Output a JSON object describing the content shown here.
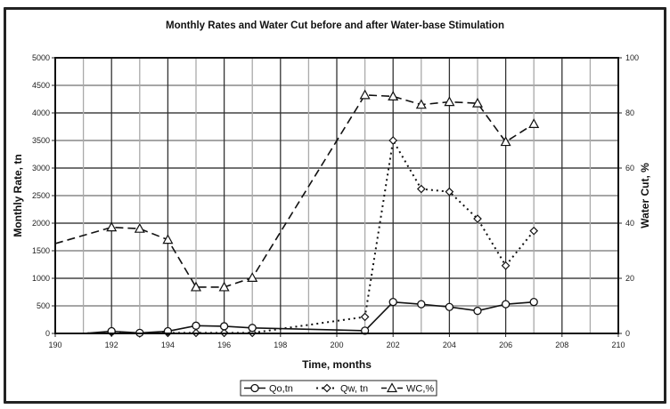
{
  "chart_data": {
    "type": "line",
    "title": "Monthly Rates and Water Cut before and after Water-base Stimulation",
    "xlabel": "Time, months",
    "ylabel": "Monthly Rate, tn",
    "y2label": "Water Cut, %",
    "xlim": [
      190,
      210
    ],
    "ylim": [
      0,
      5000
    ],
    "y2lim": [
      0,
      100
    ],
    "xticks": [
      190,
      192,
      194,
      196,
      198,
      200,
      202,
      204,
      206,
      208,
      210
    ],
    "yticks": [
      0,
      500,
      1000,
      1500,
      2000,
      2500,
      3000,
      3500,
      4000,
      4500,
      5000
    ],
    "y2ticks": [
      0,
      20,
      40,
      60,
      80,
      100
    ],
    "grid": true,
    "legend_position": "bottom",
    "series": [
      {
        "name": "Qo,tn",
        "axis": "left",
        "style": "solid",
        "marker": "circle",
        "x": [
          192,
          193,
          194,
          195,
          196,
          197,
          201,
          202,
          203,
          204,
          205,
          206,
          207
        ],
        "values": [
          40,
          10,
          40,
          140,
          130,
          100,
          50,
          570,
          530,
          480,
          410,
          530,
          570
        ],
        "leading_x": [
          190,
          191
        ],
        "leading_values": [
          0,
          0
        ]
      },
      {
        "name": "Qw, tn",
        "axis": "left",
        "style": "dotted",
        "marker": "diamond",
        "x": [
          192,
          193,
          194,
          195,
          196,
          197,
          201,
          202,
          203,
          204,
          205,
          206,
          207
        ],
        "values": [
          20,
          0,
          10,
          10,
          10,
          10,
          300,
          3500,
          2620,
          2570,
          2080,
          1230,
          1860
        ],
        "leading_x": [
          190,
          191
        ],
        "leading_values": [
          0,
          0
        ]
      },
      {
        "name": "WC,%",
        "axis": "right",
        "style": "dashed",
        "marker": "triangle",
        "x": [
          192,
          193,
          194,
          195,
          196,
          197,
          201,
          202,
          203,
          204,
          205,
          206,
          207
        ],
        "values": [
          38.5,
          38,
          34,
          16.8,
          16.8,
          20.2,
          86.5,
          86,
          83,
          84,
          83.5,
          69.5,
          76
        ],
        "leading_x": [
          190
        ],
        "leading_values": [
          32.6
        ]
      }
    ]
  }
}
